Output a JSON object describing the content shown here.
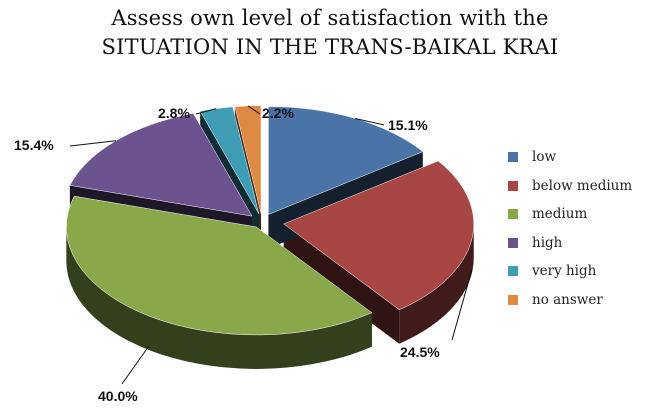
{
  "chart_data": {
    "type": "pie",
    "title_lines": [
      "Assess own level of satisfaction with the",
      "SITUATION IN THE TRANS-BAIKAL KRAI"
    ],
    "slices": [
      {
        "name": "low",
        "value": 15.1,
        "label": "15.1%",
        "color": "#4a74a8",
        "exploded": true
      },
      {
        "name": "below medium",
        "value": 24.5,
        "label": "24.5%",
        "color": "#a84643",
        "exploded": true
      },
      {
        "name": "medium",
        "value": 40.0,
        "label": "40.0%",
        "color": "#89a84a",
        "exploded": true
      },
      {
        "name": "high",
        "value": 15.4,
        "label": "15.4%",
        "color": "#6c5390",
        "exploded": true
      },
      {
        "name": "very high",
        "value": 2.8,
        "label": "2.8%",
        "color": "#3f9cb5",
        "exploded": true
      },
      {
        "name": "no answer",
        "value": 2.2,
        "label": "2.2%",
        "color": "#df8a44",
        "exploded": true
      }
    ],
    "legend_position": "right",
    "style": "3d-exploded"
  }
}
